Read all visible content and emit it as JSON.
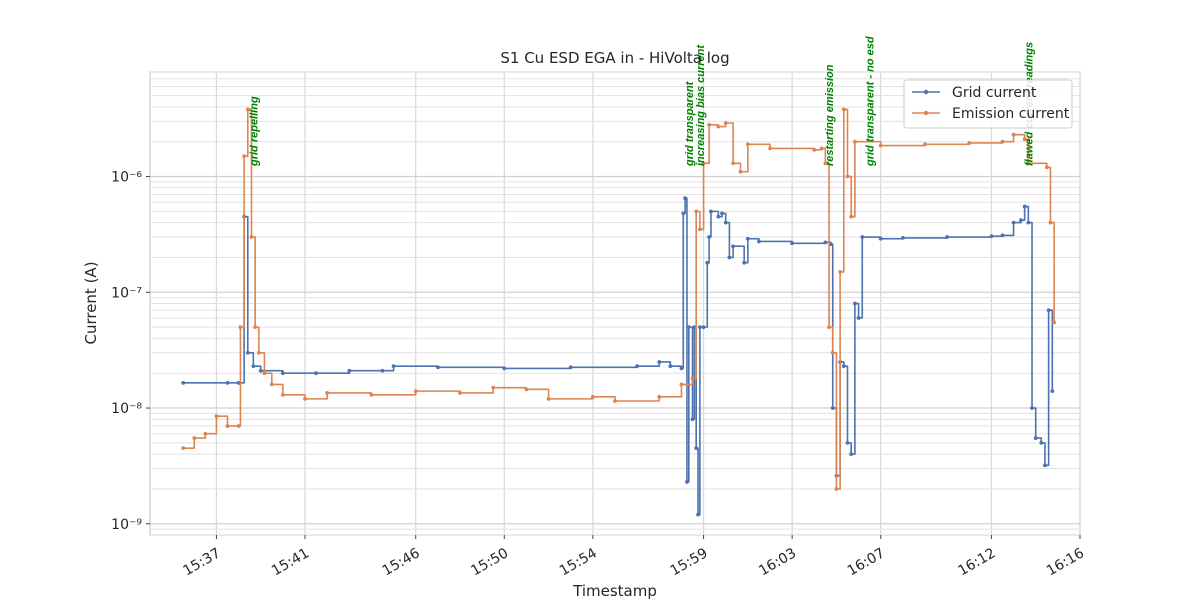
{
  "chart_data": {
    "type": "line",
    "title": "S1 Cu ESD EGA in - HiVolta log",
    "xlabel": "Timestamp",
    "ylabel": "Current (A)",
    "y_scale": "log",
    "ylim": [
      8e-10,
      8e-06
    ],
    "xlim": [
      "15:34",
      "16:16"
    ],
    "x_ticks": [
      "15:37",
      "15:41",
      "15:46",
      "15:50",
      "15:54",
      "15:59",
      "16:03",
      "16:07",
      "16:12",
      "16:16"
    ],
    "y_ticks": [
      {
        "value": 1e-09,
        "label": "10⁻⁹"
      },
      {
        "value": 1e-08,
        "label": "10⁻⁸"
      },
      {
        "value": 1e-07,
        "label": "10⁻⁷"
      },
      {
        "value": 1e-06,
        "label": "10⁻⁶"
      }
    ],
    "grid": true,
    "legend_position": "top-right",
    "series": [
      {
        "name": "Grid current",
        "color": "#4c72b0",
        "points": [
          [
            "15:35:30",
            1.65e-08
          ],
          [
            "15:37:30",
            1.65e-08
          ],
          [
            "15:38:00",
            1.65e-08
          ],
          [
            "15:38:15",
            4.5e-07
          ],
          [
            "15:38:25",
            3e-08
          ],
          [
            "15:38:40",
            2.3e-08
          ],
          [
            "15:39:00",
            2.1e-08
          ],
          [
            "15:40:00",
            2e-08
          ],
          [
            "15:41:30",
            2e-08
          ],
          [
            "15:43:00",
            2.1e-08
          ],
          [
            "15:44:30",
            2.1e-08
          ],
          [
            "15:45:00",
            2.3e-08
          ],
          [
            "15:47:00",
            2.25e-08
          ],
          [
            "15:50:00",
            2.2e-08
          ],
          [
            "15:53:00",
            2.25e-08
          ],
          [
            "15:56:00",
            2.3e-08
          ],
          [
            "15:57:00",
            2.5e-08
          ],
          [
            "15:57:30",
            2.3e-08
          ],
          [
            "15:58:00",
            2.2e-08
          ],
          [
            "15:58:05",
            4.8e-07
          ],
          [
            "15:58:10",
            6.5e-07
          ],
          [
            "15:58:15",
            2.3e-09
          ],
          [
            "15:58:20",
            5e-08
          ],
          [
            "15:58:30",
            8e-09
          ],
          [
            "15:58:35",
            5e-08
          ],
          [
            "15:58:40",
            4.5e-09
          ],
          [
            "15:58:45",
            1.2e-09
          ],
          [
            "15:58:50",
            5e-08
          ],
          [
            "15:59:00",
            5e-08
          ],
          [
            "15:59:10",
            1.8e-07
          ],
          [
            "15:59:15",
            3e-07
          ],
          [
            "15:59:20",
            5e-07
          ],
          [
            "15:59:40",
            4.5e-07
          ],
          [
            "15:59:50",
            4.8e-07
          ],
          [
            "16:00:00",
            4e-07
          ],
          [
            "16:00:10",
            2e-07
          ],
          [
            "16:00:20",
            2.5e-07
          ],
          [
            "16:00:50",
            1.8e-07
          ],
          [
            "16:01:00",
            2.9e-07
          ],
          [
            "16:01:30",
            2.75e-07
          ],
          [
            "16:03:00",
            2.65e-07
          ],
          [
            "16:04:30",
            2.7e-07
          ],
          [
            "16:04:45",
            2.6e-07
          ],
          [
            "16:04:50",
            1e-08
          ],
          [
            "16:05:00",
            2.6e-09
          ],
          [
            "16:05:10",
            2.5e-08
          ],
          [
            "16:05:20",
            2.3e-08
          ],
          [
            "16:05:30",
            5e-09
          ],
          [
            "16:05:40",
            4e-09
          ],
          [
            "16:05:50",
            8e-08
          ],
          [
            "16:06:00",
            6e-08
          ],
          [
            "16:06:10",
            3e-07
          ],
          [
            "16:07:00",
            2.9e-07
          ],
          [
            "16:08:00",
            2.95e-07
          ],
          [
            "16:10:00",
            3e-07
          ],
          [
            "16:12:00",
            3.05e-07
          ],
          [
            "16:12:30",
            3.1e-07
          ],
          [
            "16:13:00",
            4e-07
          ],
          [
            "16:13:20",
            4.2e-07
          ],
          [
            "16:13:30",
            5.5e-07
          ],
          [
            "16:13:40",
            4e-07
          ],
          [
            "16:13:50",
            1e-08
          ],
          [
            "16:14:00",
            5.5e-09
          ],
          [
            "16:14:15",
            5e-09
          ],
          [
            "16:14:25",
            3.2e-09
          ],
          [
            "16:14:35",
            7e-08
          ],
          [
            "16:14:45",
            1.4e-08
          ]
        ]
      },
      {
        "name": "Emission current",
        "color": "#dd8452",
        "points": [
          [
            "15:35:30",
            4.5e-09
          ],
          [
            "15:36:00",
            5.5e-09
          ],
          [
            "15:36:30",
            6e-09
          ],
          [
            "15:37:00",
            8.5e-09
          ],
          [
            "15:37:30",
            7e-09
          ],
          [
            "15:38:00",
            7e-09
          ],
          [
            "15:38:05",
            5e-08
          ],
          [
            "15:38:15",
            1.5e-06
          ],
          [
            "15:38:25",
            3.8e-06
          ],
          [
            "15:38:35",
            3e-07
          ],
          [
            "15:38:45",
            5e-08
          ],
          [
            "15:38:55",
            3e-08
          ],
          [
            "15:39:10",
            2e-08
          ],
          [
            "15:39:30",
            1.6e-08
          ],
          [
            "15:40:00",
            1.3e-08
          ],
          [
            "15:41:00",
            1.2e-08
          ],
          [
            "15:42:00",
            1.35e-08
          ],
          [
            "15:44:00",
            1.3e-08
          ],
          [
            "15:46:00",
            1.4e-08
          ],
          [
            "15:48:00",
            1.35e-08
          ],
          [
            "15:49:30",
            1.5e-08
          ],
          [
            "15:51:00",
            1.45e-08
          ],
          [
            "15:52:00",
            1.2e-08
          ],
          [
            "15:54:00",
            1.25e-08
          ],
          [
            "15:55:00",
            1.15e-08
          ],
          [
            "15:57:00",
            1.25e-08
          ],
          [
            "15:58:00",
            1.6e-08
          ],
          [
            "15:58:30",
            1.8e-08
          ],
          [
            "15:58:40",
            5e-07
          ],
          [
            "15:58:50",
            3.5e-07
          ],
          [
            "15:59:00",
            1.3e-06
          ],
          [
            "15:59:15",
            2.8e-06
          ],
          [
            "15:59:40",
            2.7e-06
          ],
          [
            "16:00:00",
            2.9e-06
          ],
          [
            "16:00:20",
            1.3e-06
          ],
          [
            "16:00:40",
            1.1e-06
          ],
          [
            "16:01:00",
            1.9e-06
          ],
          [
            "16:02:00",
            1.75e-06
          ],
          [
            "16:04:00",
            1.7e-06
          ],
          [
            "16:04:20",
            1.75e-06
          ],
          [
            "16:04:30",
            1.3e-06
          ],
          [
            "16:04:40",
            5e-08
          ],
          [
            "16:04:50",
            3e-08
          ],
          [
            "16:05:00",
            2e-09
          ],
          [
            "16:05:10",
            1.5e-07
          ],
          [
            "16:05:20",
            3.8e-06
          ],
          [
            "16:05:30",
            1e-06
          ],
          [
            "16:05:40",
            4.5e-07
          ],
          [
            "16:05:50",
            2e-06
          ],
          [
            "16:07:00",
            1.85e-06
          ],
          [
            "16:09:00",
            1.9e-06
          ],
          [
            "16:11:00",
            1.95e-06
          ],
          [
            "16:12:30",
            2e-06
          ],
          [
            "16:13:00",
            2.3e-06
          ],
          [
            "16:13:30",
            2.1e-06
          ],
          [
            "16:13:40",
            1.3e-06
          ],
          [
            "16:14:30",
            1.2e-06
          ],
          [
            "16:14:40",
            4e-07
          ],
          [
            "16:14:50",
            5.5e-08
          ]
        ]
      }
    ],
    "annotations": [
      {
        "text": "grid repelling",
        "x": "15:38:40"
      },
      {
        "text": "grid transparent",
        "x": "15:58:20"
      },
      {
        "text": "increasing bias current",
        "x": "15:58:50"
      },
      {
        "text": "restarting emission",
        "x": "16:04:40"
      },
      {
        "text": "grid transparent - no esd",
        "x": "16:06:30"
      },
      {
        "text": "flawed current readings",
        "x": "16:13:40"
      }
    ]
  }
}
